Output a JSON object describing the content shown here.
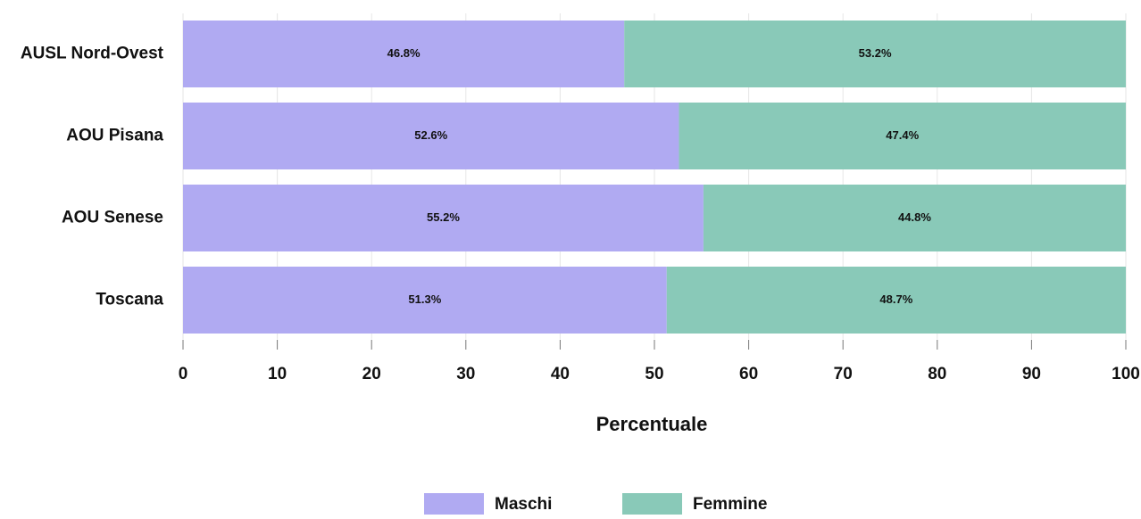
{
  "chart_data": {
    "type": "bar",
    "orientation": "horizontal",
    "stacked": true,
    "categories": [
      "AUSL Nord-Ovest",
      "AOU Pisana",
      "AOU Senese",
      "Toscana"
    ],
    "series": [
      {
        "name": "Maschi",
        "values": [
          46.8,
          52.6,
          55.2,
          51.3
        ],
        "labels": [
          "46.8%",
          "52.6%",
          "55.2%",
          "51.3%"
        ],
        "color": "#b0aaf2"
      },
      {
        "name": "Femmine",
        "values": [
          53.2,
          47.4,
          44.8,
          48.7
        ],
        "labels": [
          "53.2%",
          "47.4%",
          "44.8%",
          "48.7%"
        ],
        "color": "#89c9b8"
      }
    ],
    "xlabel": "Percentuale",
    "ylabel": "",
    "xlim": [
      0,
      100
    ],
    "xticks": [
      0,
      10,
      20,
      30,
      40,
      50,
      60,
      70,
      80,
      90,
      100
    ],
    "xtick_labels": [
      "0",
      "10",
      "20",
      "30",
      "40",
      "50",
      "60",
      "70",
      "80",
      "90",
      "100"
    ],
    "grid": "vertical",
    "legend_position": "bottom",
    "gridline_color": "#e6e6e6",
    "text_color": "#111111"
  }
}
